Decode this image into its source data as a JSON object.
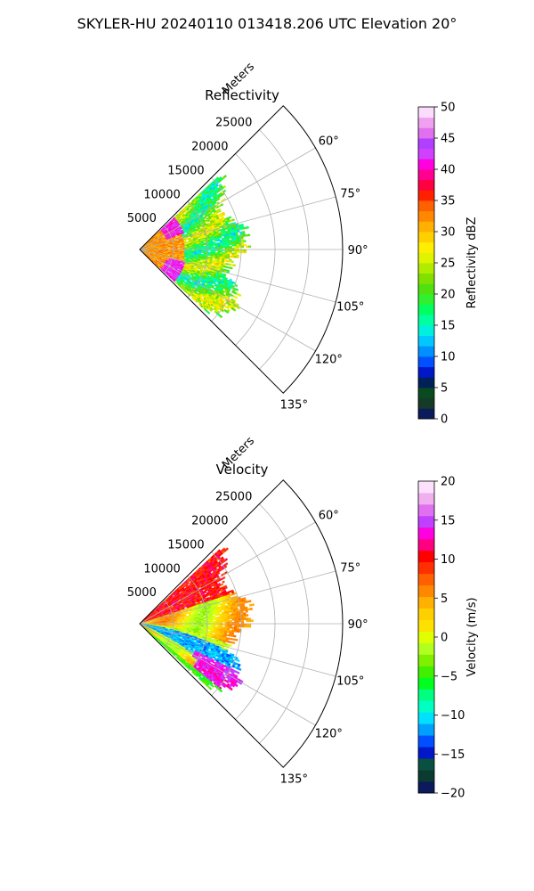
{
  "figure": {
    "suptitle": "SKYLER-HU  20240110  013418.206 UTC Elevation 20°"
  },
  "chart_data": [
    {
      "type": "heatmap",
      "projection": "polar-sector",
      "title": "Reflectivity",
      "range_axis_label": "Meters",
      "range_ticks": [
        "5000",
        "10000",
        "15000",
        "20000",
        "25000"
      ],
      "range_values": [
        5000,
        10000,
        15000,
        20000,
        25000
      ],
      "range_max": 30000,
      "azimuth_range_deg": [
        45,
        135
      ],
      "azimuth_ticks": [
        "60°",
        "75°",
        "90°",
        "105°",
        "120°",
        "135°"
      ],
      "azimuth_values": [
        60,
        75,
        90,
        105,
        120,
        135
      ],
      "grid": true,
      "data_extent": {
        "max_range_m": 16500,
        "azimuth_deg": [
          47,
          133
        ]
      },
      "colorbar": {
        "label": "Reflectivity dBZ",
        "vmin": 0,
        "vmax": 50,
        "ticks": [
          "0",
          "5",
          "10",
          "15",
          "20",
          "25",
          "30",
          "35",
          "40",
          "45",
          "50"
        ],
        "tick_values": [
          0,
          5,
          10,
          15,
          20,
          25,
          30,
          35,
          40,
          45,
          50
        ],
        "colors": [
          "#0a1a5a",
          "#163a28",
          "#0a4a20",
          "#00205a",
          "#0018c8",
          "#0050ff",
          "#0090ff",
          "#00c8ff",
          "#00f0e0",
          "#00ffa0",
          "#00ff60",
          "#30f030",
          "#50e010",
          "#80e000",
          "#b0ec00",
          "#e0f400",
          "#ffee00",
          "#ffd000",
          "#ffb000",
          "#ff8800",
          "#ff6000",
          "#ff2000",
          "#ff0040",
          "#ff0090",
          "#ff00e0",
          "#d040ff",
          "#b040ff",
          "#e070ee",
          "#f0a0f0",
          "#fcdcfc"
        ]
      }
    },
    {
      "type": "heatmap",
      "projection": "polar-sector",
      "title": "Velocity",
      "range_axis_label": "Meters",
      "range_ticks": [
        "5000",
        "10000",
        "15000",
        "20000",
        "25000"
      ],
      "range_values": [
        5000,
        10000,
        15000,
        20000,
        25000
      ],
      "range_max": 30000,
      "azimuth_range_deg": [
        45,
        135
      ],
      "azimuth_ticks": [
        "60°",
        "75°",
        "90°",
        "105°",
        "120°",
        "135°"
      ],
      "azimuth_values": [
        60,
        75,
        90,
        105,
        120,
        135
      ],
      "grid": true,
      "data_extent": {
        "max_range_m": 17000,
        "azimuth_deg": [
          47,
          133
        ]
      },
      "colorbar": {
        "label": "Velocity (m/s)",
        "vmin": -20,
        "vmax": 20,
        "ticks": [
          "−20",
          "−15",
          "−10",
          "−5",
          "0",
          "5",
          "10",
          "15",
          "20"
        ],
        "tick_values": [
          -20,
          -15,
          -10,
          -5,
          0,
          5,
          10,
          15,
          20
        ],
        "colors": [
          "#0a1a5a",
          "#0a3a30",
          "#0a5040",
          "#0018c8",
          "#0050ff",
          "#00a0ff",
          "#00e0ff",
          "#00ffc0",
          "#00ff80",
          "#00ff20",
          "#40f000",
          "#80f000",
          "#b0ff20",
          "#e0ff00",
          "#ffe000",
          "#ffd000",
          "#ffb000",
          "#ff8800",
          "#ff6000",
          "#ff3000",
          "#ff0000",
          "#ff0080",
          "#ff00e0",
          "#c040ff",
          "#e070f0",
          "#f0b0f0",
          "#fce0fc"
        ]
      }
    }
  ]
}
